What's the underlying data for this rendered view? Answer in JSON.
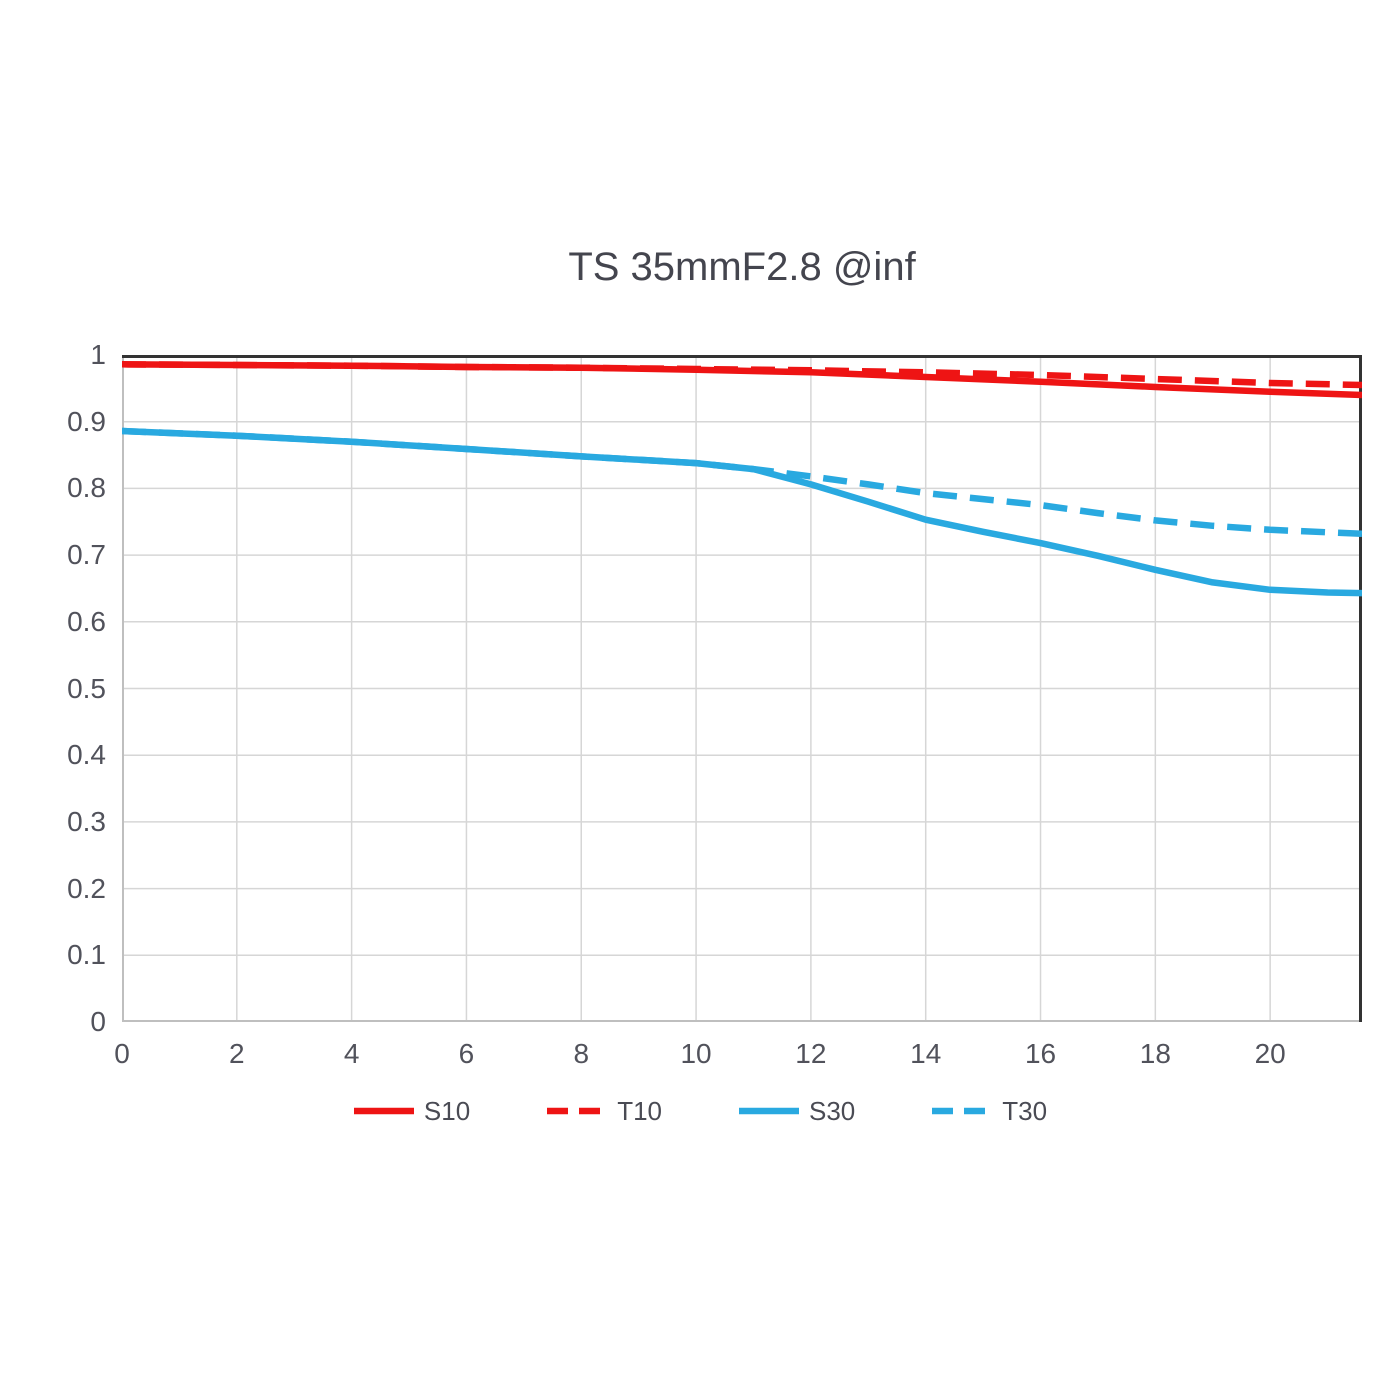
{
  "title": "TS 35mmF2.8 @inf",
  "chart_data": {
    "type": "line",
    "title": "TS 35mmF2.8 @inf",
    "xlabel": "",
    "ylabel": "",
    "xlim": [
      0,
      21.6
    ],
    "ylim": [
      0,
      1
    ],
    "x_ticks": [
      "0",
      "2",
      "4",
      "6",
      "8",
      "10",
      "12",
      "14",
      "16",
      "18",
      "20"
    ],
    "x_tick_values": [
      0,
      2,
      4,
      6,
      8,
      10,
      12,
      14,
      16,
      18,
      20
    ],
    "y_ticks": [
      "1",
      "0.9",
      "0.8",
      "0.7",
      "0.6",
      "0.5",
      "0.4",
      "0.3",
      "0.2",
      "0.1",
      "0"
    ],
    "y_tick_values": [
      1,
      0.9,
      0.8,
      0.7,
      0.6,
      0.5,
      0.4,
      0.3,
      0.2,
      0.1,
      0
    ],
    "grid": true,
    "legend_position": "bottom",
    "series": [
      {
        "name": "S10",
        "color": "#ee1414",
        "style": "solid",
        "points": [
          [
            0,
            0.986
          ],
          [
            2,
            0.985
          ],
          [
            4,
            0.984
          ],
          [
            6,
            0.982
          ],
          [
            8,
            0.981
          ],
          [
            10,
            0.978
          ],
          [
            12,
            0.974
          ],
          [
            14,
            0.967
          ],
          [
            16,
            0.96
          ],
          [
            18,
            0.952
          ],
          [
            20,
            0.945
          ],
          [
            21.6,
            0.94
          ]
        ]
      },
      {
        "name": "T10",
        "color": "#ee1414",
        "style": "dashed",
        "points": [
          [
            0,
            0.986
          ],
          [
            2,
            0.985
          ],
          [
            4,
            0.984
          ],
          [
            6,
            0.982
          ],
          [
            8,
            0.981
          ],
          [
            10,
            0.979
          ],
          [
            12,
            0.977
          ],
          [
            14,
            0.974
          ],
          [
            16,
            0.97
          ],
          [
            18,
            0.964
          ],
          [
            20,
            0.958
          ],
          [
            21.6,
            0.955
          ]
        ]
      },
      {
        "name": "S30",
        "color": "#29a9e0",
        "style": "solid",
        "points": [
          [
            0,
            0.886
          ],
          [
            2,
            0.879
          ],
          [
            4,
            0.87
          ],
          [
            6,
            0.859
          ],
          [
            8,
            0.848
          ],
          [
            10,
            0.838
          ],
          [
            11,
            0.829
          ],
          [
            12,
            0.806
          ],
          [
            13,
            0.78
          ],
          [
            14,
            0.753
          ],
          [
            15,
            0.735
          ],
          [
            16,
            0.718
          ],
          [
            17,
            0.699
          ],
          [
            18,
            0.678
          ],
          [
            19,
            0.659
          ],
          [
            20,
            0.648
          ],
          [
            21,
            0.644
          ],
          [
            21.6,
            0.643
          ]
        ]
      },
      {
        "name": "T30",
        "color": "#29a9e0",
        "style": "dashed",
        "points": [
          [
            0,
            0.886
          ],
          [
            2,
            0.879
          ],
          [
            4,
            0.87
          ],
          [
            6,
            0.859
          ],
          [
            8,
            0.848
          ],
          [
            10,
            0.838
          ],
          [
            11,
            0.829
          ],
          [
            12,
            0.818
          ],
          [
            13,
            0.806
          ],
          [
            14,
            0.793
          ],
          [
            15,
            0.784
          ],
          [
            16,
            0.775
          ],
          [
            17,
            0.763
          ],
          [
            18,
            0.752
          ],
          [
            19,
            0.744
          ],
          [
            20,
            0.738
          ],
          [
            21.6,
            0.732
          ]
        ]
      }
    ]
  },
  "colors": {
    "background": "#ffffff",
    "grid": "#d6d6d6",
    "axis": "#bfbfbf",
    "border_dark": "#333333",
    "title_text": "#44454e",
    "tick_text": "#51525b",
    "legend_text": "#4a4b54"
  }
}
